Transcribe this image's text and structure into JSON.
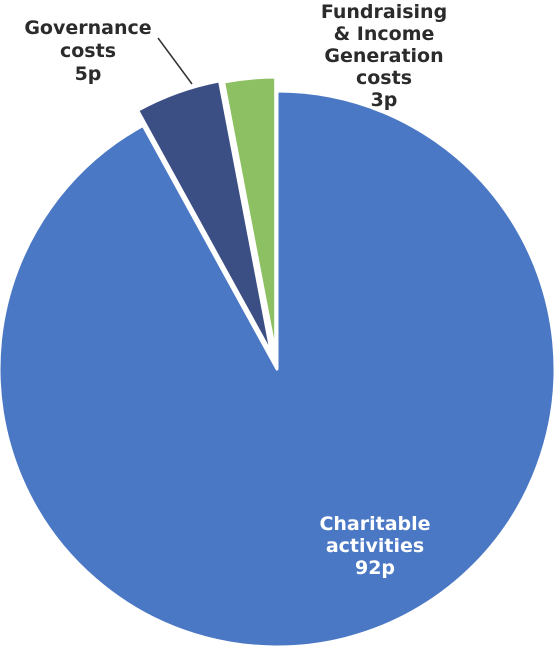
{
  "chart_data": {
    "type": "pie",
    "title": "",
    "slices": [
      {
        "name": "Charitable activities",
        "value": 92,
        "label_lines": [
          "Charitable",
          "activities",
          "92p"
        ],
        "color": "#4a78c4"
      },
      {
        "name": "Governance costs",
        "value": 5,
        "label_lines": [
          "Governance",
          "costs",
          "5p"
        ],
        "color": "#3c4f85"
      },
      {
        "name": "Fundraising & Income Generation costs",
        "value": 3,
        "label_lines": [
          "Fundraising",
          "& Income",
          "Generation",
          "costs",
          "3p"
        ],
        "color": "#8dc063"
      }
    ],
    "start_angle_deg": 0,
    "exploded": [
      "Governance costs",
      "Fundraising & Income Generation costs"
    ]
  }
}
